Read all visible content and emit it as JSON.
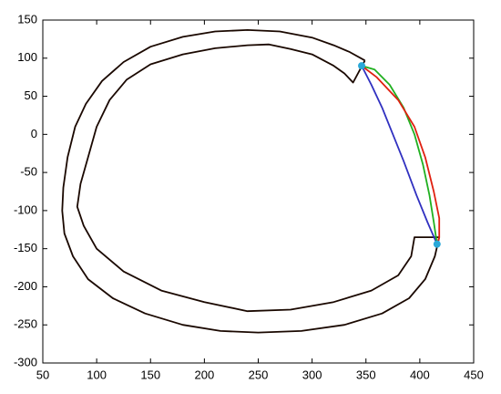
{
  "chart_data": {
    "type": "line",
    "xlim": [
      50,
      450
    ],
    "ylim": [
      -300,
      150
    ],
    "xticks": [
      50,
      100,
      150,
      200,
      250,
      300,
      350,
      400,
      450
    ],
    "yticks": [
      -300,
      -250,
      -200,
      -150,
      -100,
      -50,
      0,
      50,
      100,
      150
    ],
    "grid": false,
    "series": [
      {
        "color": "#1a0800",
        "style": "line",
        "x": [
          349,
          335,
          320,
          300,
          270,
          240,
          210,
          180,
          150,
          125,
          105,
          90,
          80,
          73,
          69,
          68,
          70,
          78,
          92,
          115,
          145,
          180,
          215,
          250,
          290,
          330,
          365,
          390,
          405,
          414,
          418,
          395,
          392,
          380,
          355,
          320,
          280,
          240,
          200,
          160,
          125,
          100,
          88,
          82,
          85,
          92,
          100,
          112,
          128,
          150,
          180,
          210,
          240,
          260,
          280,
          300,
          320,
          330,
          338,
          349
        ],
        "values": [
          97,
          108,
          117,
          127,
          135,
          137,
          135,
          128,
          115,
          95,
          70,
          40,
          10,
          -30,
          -70,
          -100,
          -130,
          -160,
          -190,
          -215,
          -235,
          -250,
          -258,
          -260,
          -258,
          -250,
          -235,
          -215,
          -190,
          -160,
          -135,
          -135,
          -160,
          -185,
          -205,
          -220,
          -230,
          -232,
          -220,
          -205,
          -180,
          -150,
          -120,
          -95,
          -65,
          -30,
          10,
          45,
          72,
          92,
          105,
          113,
          117,
          118,
          112,
          105,
          90,
          80,
          68,
          97
        ]
      },
      {
        "color": "#3030c0",
        "style": "line",
        "x": [
          346,
          355,
          365,
          375,
          385,
          397,
          407,
          416
        ],
        "values": [
          90,
          65,
          35,
          0,
          -35,
          -80,
          -115,
          -144
        ]
      },
      {
        "color": "#20b020",
        "style": "line",
        "x": [
          346,
          358,
          372,
          385,
          395,
          403,
          409,
          413,
          416
        ],
        "values": [
          90,
          85,
          65,
          35,
          0,
          -40,
          -80,
          -115,
          -144
        ]
      },
      {
        "color": "#e02010",
        "style": "line",
        "x": [
          346,
          360,
          380,
          395,
          405,
          413,
          418,
          418,
          416
        ],
        "values": [
          90,
          75,
          45,
          10,
          -30,
          -75,
          -110,
          -135,
          -144
        ]
      },
      {
        "color": "#2aa8d8",
        "style": "markers",
        "x": [
          346,
          416
        ],
        "values": [
          90,
          -144
        ]
      }
    ]
  }
}
